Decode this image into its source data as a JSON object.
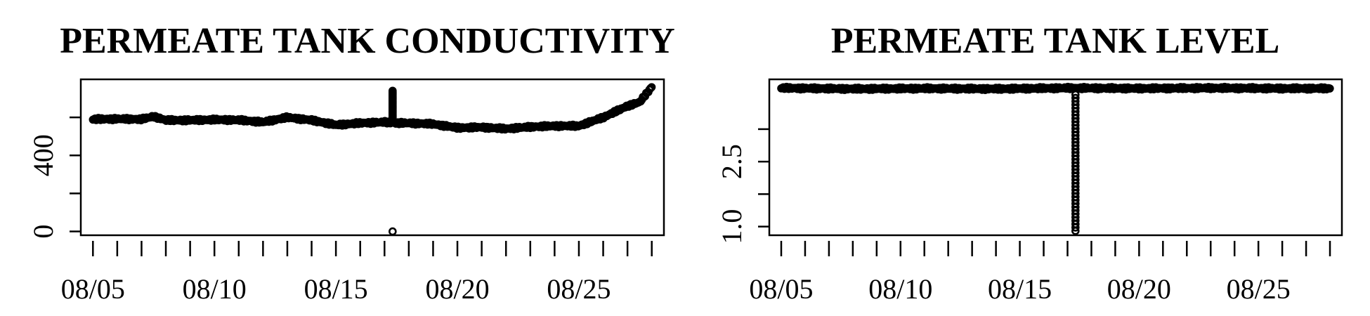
{
  "chart_data": [
    {
      "type": "scatter",
      "title": "PERMEATE TANK CONDUCTIVITY",
      "xlabel": "",
      "ylabel": "",
      "x_range": [
        "2023-08-04T12:00",
        "2023-08-28T12:00"
      ],
      "ylim": [
        -20,
        800
      ],
      "y_ticks": [
        0,
        200,
        400,
        600
      ],
      "y_tick_labels": [
        "0",
        "",
        "400",
        ""
      ],
      "x_tick_labels": [
        "08/05",
        "08/10",
        "08/15",
        "08/20",
        "08/25"
      ],
      "series": [
        {
          "x": [
            "08/05",
            "08/06",
            "08/07",
            "08/07 12:00",
            "08/08",
            "08/09",
            "08/10",
            "08/11",
            "08/12",
            "08/13",
            "08/14",
            "08/15",
            "08/16",
            "08/17",
            "08/17 12:00",
            "08/18",
            "08/19",
            "08/20",
            "08/21",
            "08/22",
            "08/23",
            "08/24",
            "08/25",
            "08/26",
            "08/27",
            "08/27 12:00",
            "08/28"
          ],
          "y": [
            590,
            592,
            590,
            605,
            585,
            585,
            588,
            586,
            575,
            600,
            585,
            560,
            570,
            575,
            570,
            570,
            565,
            545,
            548,
            540,
            550,
            555,
            555,
            600,
            660,
            680,
            760
          ],
          "spikes": [
            {
              "x": "08/17 08:00",
              "y_from": 580,
              "y_to": 740
            }
          ],
          "outliers": [
            {
              "x": "08/17 08:00",
              "y": 0
            }
          ]
        }
      ]
    },
    {
      "type": "scatter",
      "title": "PERMEATE TANK LEVEL",
      "xlabel": "",
      "ylabel": "",
      "x_range": [
        "2023-08-04T12:00",
        "2023-08-28T12:00"
      ],
      "ylim": [
        0.8,
        4.4
      ],
      "y_ticks": [
        1.0,
        1.75,
        2.5,
        3.25
      ],
      "y_tick_labels": [
        "1.0",
        "",
        "2.5",
        ""
      ],
      "x_tick_labels": [
        "08/05",
        "08/10",
        "08/15",
        "08/20",
        "08/25"
      ],
      "series": [
        {
          "x": [
            "08/05",
            "08/08",
            "08/11",
            "08/14",
            "08/17",
            "08/20",
            "08/23",
            "08/26",
            "08/28"
          ],
          "y": [
            4.2,
            4.18,
            4.19,
            4.18,
            4.2,
            4.19,
            4.2,
            4.19,
            4.19
          ],
          "spikes": [
            {
              "x": "08/17 08:00",
              "y_from": 0.9,
              "y_to": 4.05
            }
          ],
          "outliers": []
        }
      ]
    }
  ]
}
